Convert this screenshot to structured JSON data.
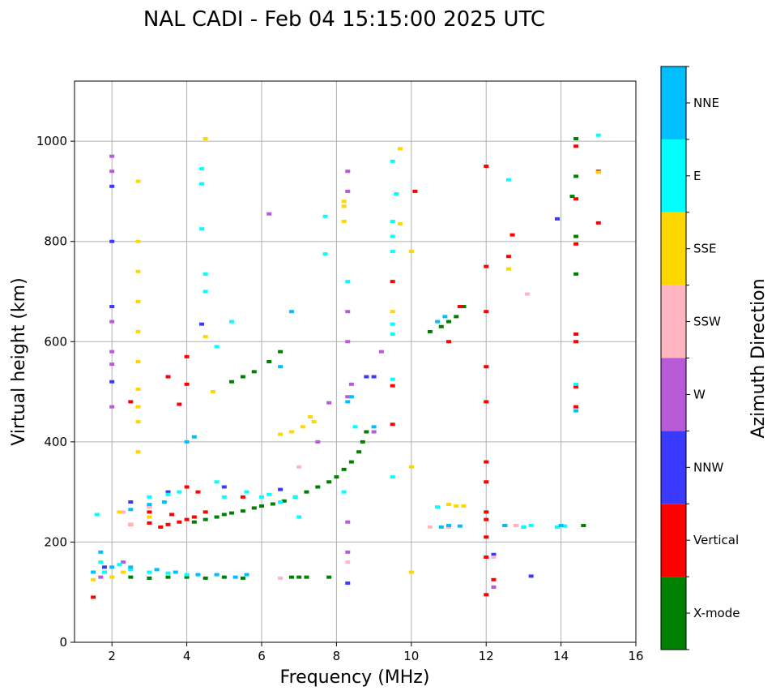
{
  "chart_data": {
    "type": "scatter",
    "title": "NAL CADI - Feb 04 15:15:00 2025 UTC",
    "xlabel": "Frequency (MHz)",
    "ylabel": "Virtual height (km)",
    "xlim": [
      1,
      16
    ],
    "ylim": [
      0,
      1120
    ],
    "xticks": [
      2,
      4,
      6,
      8,
      10,
      12,
      14,
      16
    ],
    "yticks": [
      0,
      200,
      400,
      600,
      800,
      1000
    ],
    "grid": true,
    "colorbar": {
      "label": "Azimuth Direction",
      "categories": [
        {
          "name": "X-mode",
          "color": "#008000"
        },
        {
          "name": "Vertical",
          "color": "#ff0000"
        },
        {
          "name": "NNW",
          "color": "#3a3aff"
        },
        {
          "name": "W",
          "color": "#b85bd6"
        },
        {
          "name": "SSW",
          "color": "#ffb6c1"
        },
        {
          "name": "SSE",
          "color": "#ffd700"
        },
        {
          "name": "E",
          "color": "#00ffff"
        },
        {
          "name": "NNE",
          "color": "#00bfff"
        }
      ]
    },
    "series": [
      {
        "name": "X-mode",
        "points": [
          [
            2.5,
            130
          ],
          [
            3.0,
            128
          ],
          [
            3.5,
            130
          ],
          [
            4.0,
            130
          ],
          [
            4.5,
            128
          ],
          [
            5.0,
            130
          ],
          [
            5.5,
            128
          ],
          [
            6.8,
            130
          ],
          [
            7.0,
            130
          ],
          [
            7.2,
            130
          ],
          [
            7.8,
            130
          ],
          [
            4.2,
            240
          ],
          [
            4.5,
            245
          ],
          [
            4.8,
            250
          ],
          [
            5.0,
            255
          ],
          [
            5.2,
            258
          ],
          [
            5.5,
            262
          ],
          [
            5.8,
            268
          ],
          [
            6.0,
            272
          ],
          [
            6.3,
            276
          ],
          [
            6.6,
            282
          ],
          [
            6.9,
            290
          ],
          [
            7.2,
            300
          ],
          [
            7.5,
            310
          ],
          [
            7.8,
            320
          ],
          [
            8.0,
            330
          ],
          [
            8.2,
            345
          ],
          [
            8.4,
            360
          ],
          [
            8.6,
            380
          ],
          [
            8.7,
            400
          ],
          [
            8.8,
            420
          ],
          [
            5.2,
            520
          ],
          [
            5.5,
            530
          ],
          [
            5.8,
            540
          ],
          [
            6.2,
            560
          ],
          [
            6.5,
            580
          ],
          [
            10.5,
            620
          ],
          [
            10.8,
            630
          ],
          [
            11.0,
            640
          ],
          [
            11.2,
            650
          ],
          [
            11.4,
            670
          ],
          [
            13.0,
            230
          ],
          [
            14.6,
            233
          ],
          [
            14.4,
            735
          ],
          [
            14.4,
            1005
          ],
          [
            14.4,
            930
          ],
          [
            14.4,
            810
          ],
          [
            14.3,
            890
          ]
        ]
      },
      {
        "name": "Vertical",
        "points": [
          [
            1.5,
            90
          ],
          [
            2.5,
            235
          ],
          [
            3.0,
            238
          ],
          [
            3.3,
            230
          ],
          [
            3.5,
            235
          ],
          [
            3.8,
            240
          ],
          [
            4.0,
            245
          ],
          [
            4.2,
            250
          ],
          [
            3.6,
            255
          ],
          [
            3.0,
            260
          ],
          [
            4.5,
            260
          ],
          [
            5.5,
            290
          ],
          [
            4.0,
            310
          ],
          [
            4.3,
            300
          ],
          [
            2.5,
            480
          ],
          [
            3.5,
            530
          ],
          [
            4.0,
            570
          ],
          [
            3.8,
            475
          ],
          [
            4.0,
            515
          ],
          [
            9.5,
            512
          ],
          [
            9.5,
            435
          ],
          [
            9.5,
            720
          ],
          [
            10.1,
            900
          ],
          [
            12.0,
            950
          ],
          [
            12.0,
            750
          ],
          [
            12.0,
            660
          ],
          [
            12.0,
            550
          ],
          [
            12.0,
            480
          ],
          [
            12.0,
            360
          ],
          [
            12.0,
            320
          ],
          [
            12.0,
            260
          ],
          [
            12.0,
            245
          ],
          [
            12.0,
            210
          ],
          [
            12.0,
            170
          ],
          [
            12.0,
            95
          ],
          [
            12.2,
            125
          ],
          [
            12.2,
            175
          ],
          [
            12.5,
            233
          ],
          [
            12.8,
            233
          ],
          [
            12.7,
            813
          ],
          [
            12.6,
            770
          ],
          [
            14.4,
            470
          ],
          [
            14.4,
            510
          ],
          [
            14.4,
            600
          ],
          [
            14.4,
            615
          ],
          [
            14.4,
            885
          ],
          [
            14.4,
            990
          ],
          [
            14.4,
            795
          ],
          [
            15.0,
            940
          ],
          [
            15.0,
            837
          ],
          [
            11.0,
            600
          ],
          [
            11.3,
            670
          ]
        ]
      },
      {
        "name": "NNW",
        "points": [
          [
            2.0,
            910
          ],
          [
            2.0,
            800
          ],
          [
            2.0,
            670
          ],
          [
            2.0,
            520
          ],
          [
            4.4,
            635
          ],
          [
            8.8,
            530
          ],
          [
            9.0,
            530
          ],
          [
            8.3,
            118
          ],
          [
            12.2,
            175
          ],
          [
            13.2,
            132
          ],
          [
            13.9,
            845
          ],
          [
            1.8,
            150
          ],
          [
            2.5,
            280
          ],
          [
            3.5,
            300
          ],
          [
            5.0,
            310
          ],
          [
            6.5,
            305
          ]
        ]
      },
      {
        "name": "W",
        "points": [
          [
            2.0,
            970
          ],
          [
            2.0,
            940
          ],
          [
            2.0,
            640
          ],
          [
            2.0,
            580
          ],
          [
            2.0,
            555
          ],
          [
            2.0,
            470
          ],
          [
            6.2,
            855
          ],
          [
            8.3,
            940
          ],
          [
            8.3,
            900
          ],
          [
            8.3,
            660
          ],
          [
            8.3,
            600
          ],
          [
            8.3,
            490
          ],
          [
            8.3,
            240
          ],
          [
            8.3,
            180
          ],
          [
            9.2,
            580
          ],
          [
            9.0,
            420
          ],
          [
            7.5,
            400
          ],
          [
            7.8,
            478
          ],
          [
            8.4,
            515
          ],
          [
            12.2,
            110
          ],
          [
            1.7,
            130
          ],
          [
            2.3,
            160
          ],
          [
            3.0,
            270
          ]
        ]
      },
      {
        "name": "SSW",
        "points": [
          [
            2.5,
            235
          ],
          [
            3.0,
            270
          ],
          [
            2.3,
            260
          ],
          [
            6.5,
            128
          ],
          [
            10.5,
            230
          ],
          [
            11.0,
            230
          ],
          [
            12.8,
            233
          ],
          [
            13.1,
            695
          ],
          [
            8.3,
            160
          ],
          [
            12.2,
            170
          ],
          [
            7.0,
            350
          ]
        ]
      },
      {
        "name": "SSE",
        "points": [
          [
            1.5,
            125
          ],
          [
            2.0,
            130
          ],
          [
            2.3,
            140
          ],
          [
            2.7,
            920
          ],
          [
            2.7,
            800
          ],
          [
            2.7,
            740
          ],
          [
            2.7,
            680
          ],
          [
            2.7,
            620
          ],
          [
            2.7,
            560
          ],
          [
            2.7,
            505
          ],
          [
            2.7,
            470
          ],
          [
            2.7,
            440
          ],
          [
            2.7,
            380
          ],
          [
            4.5,
            1005
          ],
          [
            4.5,
            610
          ],
          [
            4.7,
            500
          ],
          [
            6.5,
            415
          ],
          [
            6.8,
            420
          ],
          [
            7.1,
            430
          ],
          [
            7.4,
            440
          ],
          [
            7.3,
            450
          ],
          [
            8.2,
            880
          ],
          [
            8.2,
            870
          ],
          [
            8.2,
            840
          ],
          [
            9.7,
            985
          ],
          [
            9.7,
            835
          ],
          [
            9.5,
            660
          ],
          [
            10.0,
            780
          ],
          [
            10.0,
            350
          ],
          [
            10.0,
            140
          ],
          [
            11.0,
            275
          ],
          [
            11.2,
            272
          ],
          [
            11.4,
            272
          ],
          [
            12.6,
            745
          ],
          [
            15.0,
            938
          ],
          [
            2.2,
            260
          ],
          [
            3.0,
            250
          ]
        ]
      },
      {
        "name": "E",
        "points": [
          [
            1.6,
            255
          ],
          [
            1.7,
            160
          ],
          [
            1.8,
            140
          ],
          [
            2.2,
            155
          ],
          [
            2.5,
            145
          ],
          [
            3.0,
            140
          ],
          [
            3.5,
            138
          ],
          [
            4.0,
            135
          ],
          [
            4.4,
            945
          ],
          [
            4.4,
            915
          ],
          [
            4.4,
            825
          ],
          [
            4.5,
            735
          ],
          [
            4.5,
            700
          ],
          [
            4.8,
            590
          ],
          [
            5.2,
            640
          ],
          [
            3.5,
            295
          ],
          [
            3.0,
            290
          ],
          [
            3.8,
            300
          ],
          [
            4.8,
            320
          ],
          [
            5.0,
            290
          ],
          [
            5.6,
            300
          ],
          [
            6.0,
            290
          ],
          [
            6.2,
            295
          ],
          [
            6.5,
            280
          ],
          [
            6.9,
            290
          ],
          [
            7.0,
            250
          ],
          [
            7.7,
            850
          ],
          [
            7.7,
            775
          ],
          [
            8.3,
            720
          ],
          [
            8.2,
            300
          ],
          [
            8.5,
            430
          ],
          [
            9.5,
            960
          ],
          [
            9.5,
            840
          ],
          [
            9.5,
            810
          ],
          [
            9.5,
            780
          ],
          [
            9.5,
            635
          ],
          [
            9.5,
            615
          ],
          [
            9.5,
            525
          ],
          [
            9.5,
            330
          ],
          [
            9.6,
            895
          ],
          [
            10.7,
            270
          ],
          [
            12.6,
            923
          ],
          [
            13.0,
            230
          ],
          [
            13.2,
            233
          ],
          [
            13.9,
            230
          ],
          [
            14.1,
            232
          ],
          [
            14.4,
            515
          ],
          [
            15.0,
            1012
          ]
        ]
      },
      {
        "name": "NNE",
        "points": [
          [
            1.5,
            140
          ],
          [
            1.7,
            180
          ],
          [
            2.0,
            150
          ],
          [
            2.5,
            150
          ],
          [
            3.2,
            145
          ],
          [
            3.7,
            140
          ],
          [
            4.3,
            135
          ],
          [
            4.8,
            135
          ],
          [
            5.3,
            130
          ],
          [
            5.6,
            135
          ],
          [
            2.5,
            265
          ],
          [
            3.0,
            275
          ],
          [
            3.4,
            280
          ],
          [
            4.0,
            400
          ],
          [
            4.2,
            410
          ],
          [
            6.5,
            550
          ],
          [
            6.8,
            660
          ],
          [
            8.3,
            480
          ],
          [
            8.4,
            490
          ],
          [
            9.0,
            430
          ],
          [
            10.8,
            230
          ],
          [
            11.0,
            233
          ],
          [
            11.3,
            232
          ],
          [
            12.5,
            233
          ],
          [
            14.0,
            233
          ],
          [
            14.4,
            462
          ],
          [
            10.7,
            640
          ],
          [
            10.9,
            650
          ]
        ]
      }
    ]
  }
}
